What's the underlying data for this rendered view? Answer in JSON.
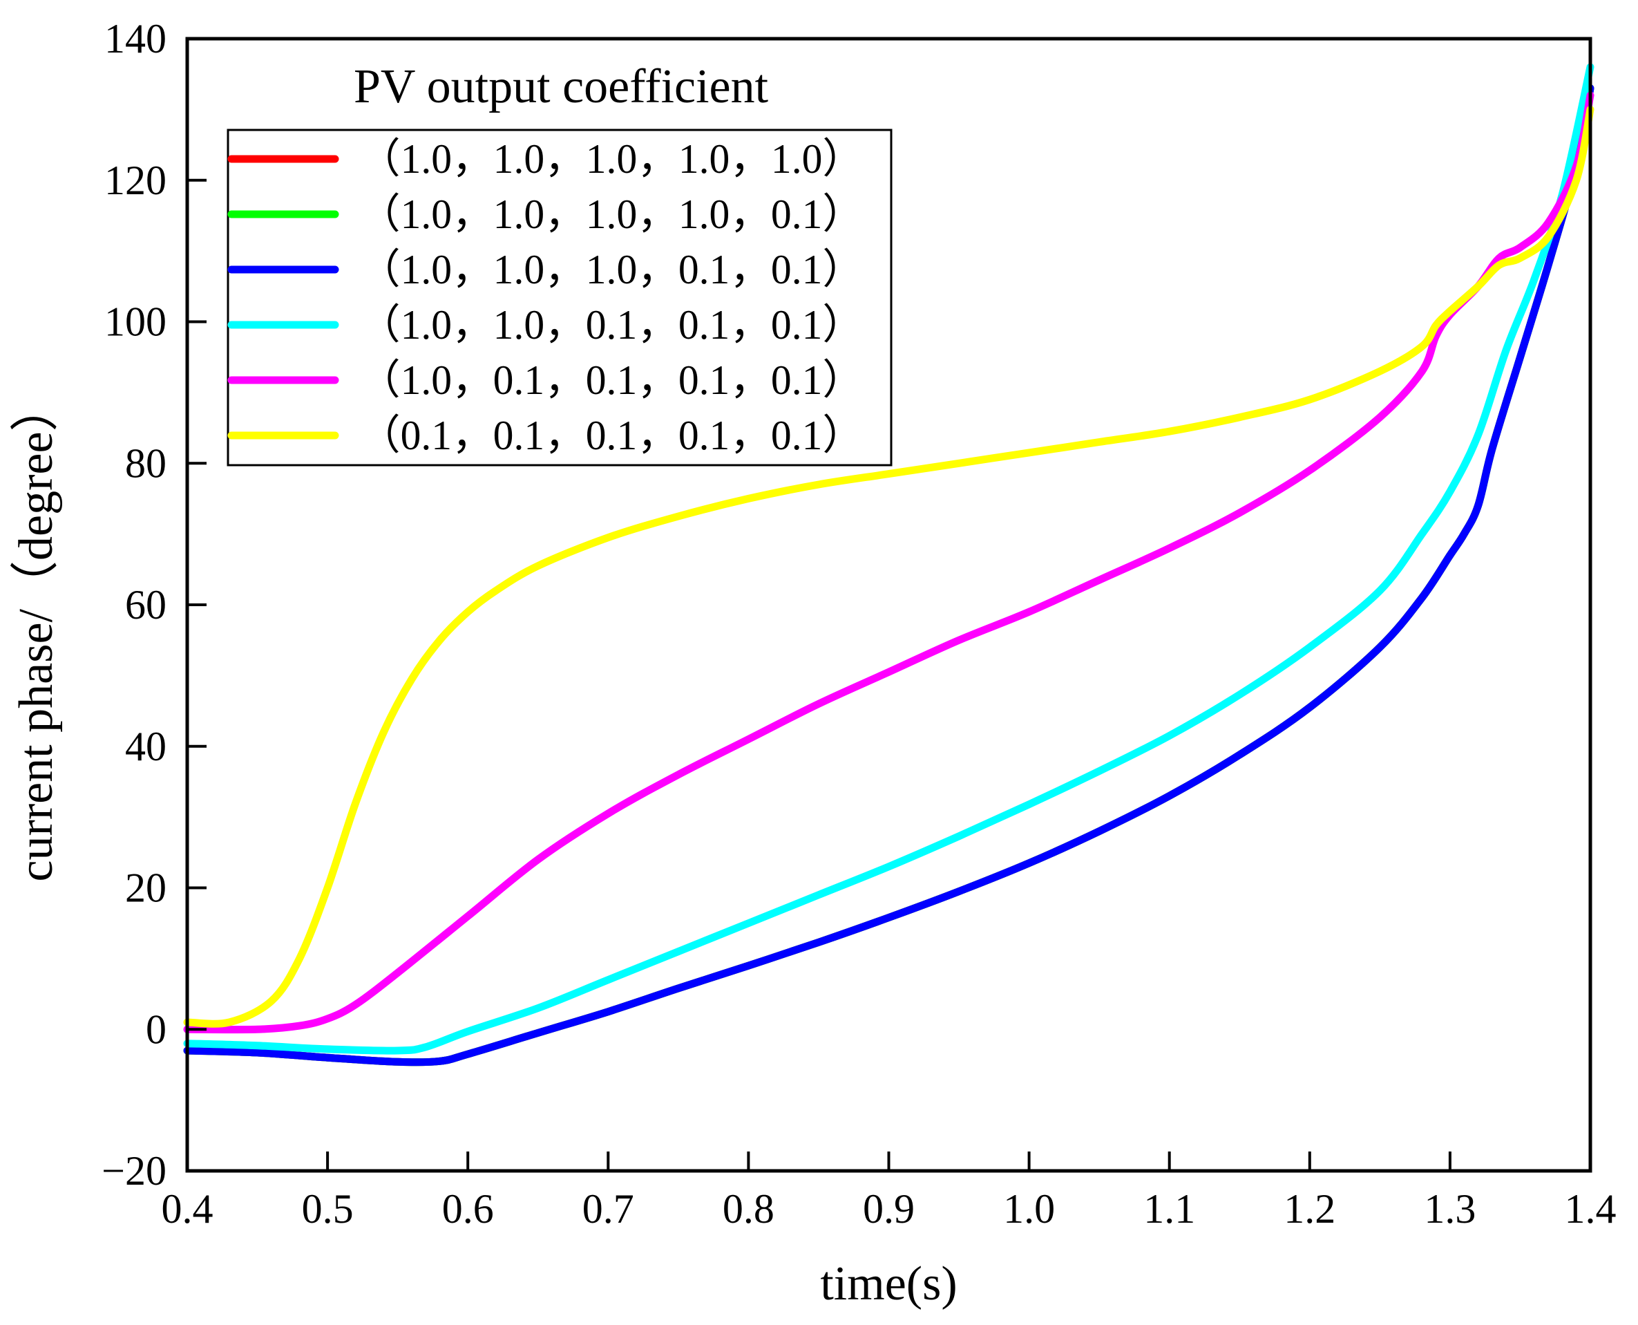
{
  "chart_data": {
    "type": "line",
    "title": "",
    "xlabel": "time(s)",
    "ylabel": "current phase/（degree）",
    "xlim": [
      0.4,
      1.4
    ],
    "ylim": [
      -20,
      140
    ],
    "xticks": [
      0.4,
      0.5,
      0.6,
      0.7,
      0.8,
      0.9,
      1.0,
      1.1,
      1.2,
      1.3,
      1.4
    ],
    "xtick_labels": [
      "0.4",
      "0.5",
      "0.6",
      "0.7",
      "0.8",
      "0.9",
      "1.0",
      "1.1",
      "1.2",
      "1.3",
      "1.4"
    ],
    "yticks": [
      -20,
      0,
      20,
      40,
      60,
      80,
      100,
      120,
      140
    ],
    "ytick_labels": [
      "−20",
      "0",
      "20",
      "40",
      "60",
      "80",
      "100",
      "120",
      "140"
    ],
    "grid": false,
    "legend": {
      "title": "PV output coefficient",
      "placement": "top-left"
    },
    "series": [
      {
        "name": "（1.0，1.0，1.0，1.0，1.0）",
        "color": "#ff0000",
        "x": [
          0.4,
          0.45,
          0.5,
          0.55,
          0.58,
          0.6,
          0.65,
          0.7,
          0.75,
          0.8,
          0.85,
          0.9,
          0.95,
          1.0,
          1.05,
          1.1,
          1.15,
          1.2,
          1.25,
          1.28,
          1.3,
          1.31,
          1.32,
          1.33,
          1.35,
          1.37,
          1.39,
          1.4
        ],
        "y": [
          -3,
          -3.3,
          -4,
          -4.6,
          -4.5,
          -3.5,
          -0.5,
          2.5,
          5.8,
          9,
          12.3,
          15.8,
          19.5,
          23.5,
          28,
          33,
          38.8,
          45.5,
          54,
          61,
          67,
          70,
          74,
          82,
          95,
          108,
          122,
          133
        ]
      },
      {
        "name": "（1.0，1.0，1.0，1.0，0.1）",
        "color": "#00ff00",
        "x": [
          0.4,
          0.45,
          0.5,
          0.55,
          0.58,
          0.6,
          0.65,
          0.7,
          0.75,
          0.8,
          0.85,
          0.9,
          0.95,
          1.0,
          1.05,
          1.1,
          1.15,
          1.2,
          1.25,
          1.28,
          1.3,
          1.31,
          1.32,
          1.33,
          1.35,
          1.37,
          1.39,
          1.4
        ],
        "y": [
          -3,
          -3.3,
          -4,
          -4.6,
          -4.5,
          -3.5,
          -0.5,
          2.5,
          5.8,
          9,
          12.3,
          15.8,
          19.5,
          23.5,
          28,
          33,
          38.8,
          45.5,
          54,
          61,
          67,
          70,
          74,
          82,
          95,
          108,
          122,
          133
        ]
      },
      {
        "name": "（1.0，1.0，1.0，0.1，0.1）",
        "color": "#0000ff",
        "x": [
          0.4,
          0.45,
          0.5,
          0.55,
          0.58,
          0.6,
          0.65,
          0.7,
          0.75,
          0.8,
          0.85,
          0.9,
          0.95,
          1.0,
          1.05,
          1.1,
          1.15,
          1.2,
          1.25,
          1.28,
          1.3,
          1.31,
          1.32,
          1.33,
          1.35,
          1.37,
          1.39,
          1.4
        ],
        "y": [
          -3,
          -3.3,
          -4,
          -4.6,
          -4.5,
          -3.5,
          -0.5,
          2.5,
          5.8,
          9,
          12.3,
          15.8,
          19.5,
          23.5,
          28,
          33,
          38.8,
          45.5,
          54,
          61,
          67,
          70,
          74,
          82,
          95,
          108,
          122,
          133
        ]
      },
      {
        "name": "（1.0，1.0，0.1，0.1，0.1）",
        "color": "#00ffff",
        "x": [
          0.4,
          0.45,
          0.5,
          0.55,
          0.57,
          0.6,
          0.65,
          0.7,
          0.75,
          0.8,
          0.85,
          0.9,
          0.95,
          1.0,
          1.05,
          1.1,
          1.15,
          1.2,
          1.25,
          1.28,
          1.3,
          1.32,
          1.34,
          1.36,
          1.38,
          1.4
        ],
        "y": [
          -2,
          -2.3,
          -2.8,
          -3,
          -2.5,
          -0.3,
          3,
          7,
          11,
          15,
          19,
          23,
          27.3,
          31.8,
          36.5,
          41.5,
          47.3,
          54,
          62,
          70,
          76,
          84,
          96,
          106,
          118,
          136
        ]
      },
      {
        "name": "（1.0，0.1，0.1，0.1，0.1）",
        "color": "#ff00ff",
        "x": [
          0.4,
          0.45,
          0.48,
          0.5,
          0.52,
          0.55,
          0.6,
          0.65,
          0.7,
          0.75,
          0.8,
          0.85,
          0.9,
          0.95,
          1.0,
          1.05,
          1.1,
          1.15,
          1.2,
          1.25,
          1.28,
          1.29,
          1.3,
          1.32,
          1.335,
          1.35,
          1.37,
          1.39,
          1.4
        ],
        "y": [
          0,
          0,
          0.5,
          1.5,
          3.5,
          8,
          16,
          24,
          30.5,
          36,
          41,
          46,
          50.5,
          55,
          59,
          63.5,
          68,
          73,
          79,
          86.5,
          93,
          98,
          101,
          105,
          109,
          110.5,
          114,
          122,
          132
        ]
      },
      {
        "name": "（0.1，0.1，0.1，0.1，0.1）",
        "color": "#ffff00",
        "x": [
          0.4,
          0.43,
          0.46,
          0.48,
          0.5,
          0.52,
          0.54,
          0.56,
          0.58,
          0.6,
          0.62,
          0.65,
          0.7,
          0.75,
          0.8,
          0.85,
          0.9,
          0.95,
          1.0,
          1.05,
          1.1,
          1.15,
          1.2,
          1.25,
          1.28,
          1.29,
          1.3,
          1.32,
          1.335,
          1.35,
          1.37,
          1.39,
          1.4
        ],
        "y": [
          1,
          1,
          4,
          10,
          20,
          32,
          42,
          49.5,
          55,
          59,
          62,
          65.5,
          69.5,
          72.5,
          75,
          77,
          78.5,
          80,
          81.5,
          83,
          84.5,
          86.5,
          89,
          93,
          96.5,
          99.5,
          101.5,
          105,
          108,
          109,
          112,
          120,
          130
        ]
      }
    ]
  }
}
